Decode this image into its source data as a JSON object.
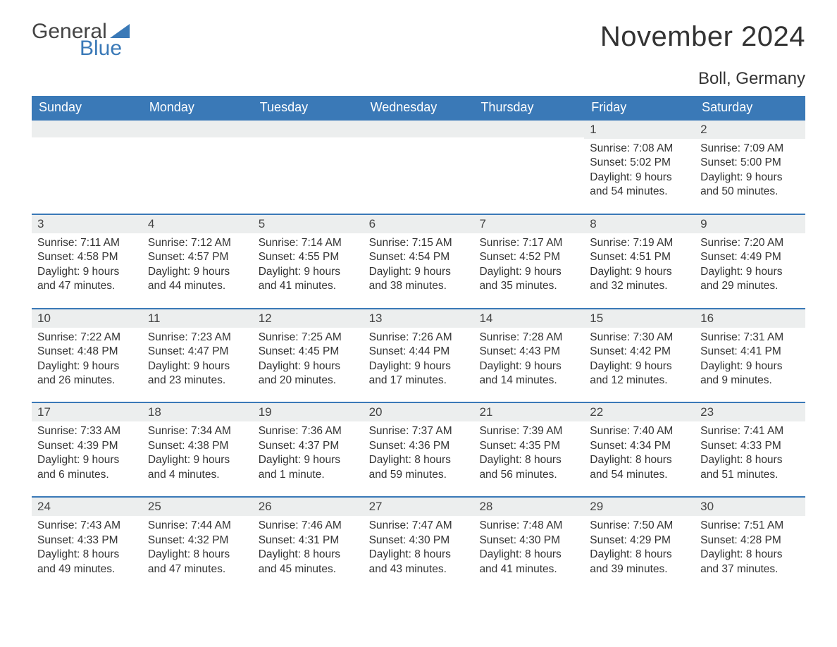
{
  "brand": {
    "general": "General",
    "blue": "Blue",
    "tri_color": "#3a79b7"
  },
  "title": "November 2024",
  "location": "Boll, Germany",
  "colors": {
    "header_bg": "#3a79b7",
    "header_text": "#ffffff",
    "daynum_bg": "#eceeee",
    "daynum_border": "#3a79b7",
    "text": "#333333",
    "page_bg": "#ffffff"
  },
  "dow": [
    "Sunday",
    "Monday",
    "Tuesday",
    "Wednesday",
    "Thursday",
    "Friday",
    "Saturday"
  ],
  "weeks": [
    [
      null,
      null,
      null,
      null,
      null,
      {
        "n": "1",
        "sunrise": "7:08 AM",
        "sunset": "5:02 PM",
        "daylight": "9 hours and 54 minutes."
      },
      {
        "n": "2",
        "sunrise": "7:09 AM",
        "sunset": "5:00 PM",
        "daylight": "9 hours and 50 minutes."
      }
    ],
    [
      {
        "n": "3",
        "sunrise": "7:11 AM",
        "sunset": "4:58 PM",
        "daylight": "9 hours and 47 minutes."
      },
      {
        "n": "4",
        "sunrise": "7:12 AM",
        "sunset": "4:57 PM",
        "daylight": "9 hours and 44 minutes."
      },
      {
        "n": "5",
        "sunrise": "7:14 AM",
        "sunset": "4:55 PM",
        "daylight": "9 hours and 41 minutes."
      },
      {
        "n": "6",
        "sunrise": "7:15 AM",
        "sunset": "4:54 PM",
        "daylight": "9 hours and 38 minutes."
      },
      {
        "n": "7",
        "sunrise": "7:17 AM",
        "sunset": "4:52 PM",
        "daylight": "9 hours and 35 minutes."
      },
      {
        "n": "8",
        "sunrise": "7:19 AM",
        "sunset": "4:51 PM",
        "daylight": "9 hours and 32 minutes."
      },
      {
        "n": "9",
        "sunrise": "7:20 AM",
        "sunset": "4:49 PM",
        "daylight": "9 hours and 29 minutes."
      }
    ],
    [
      {
        "n": "10",
        "sunrise": "7:22 AM",
        "sunset": "4:48 PM",
        "daylight": "9 hours and 26 minutes."
      },
      {
        "n": "11",
        "sunrise": "7:23 AM",
        "sunset": "4:47 PM",
        "daylight": "9 hours and 23 minutes."
      },
      {
        "n": "12",
        "sunrise": "7:25 AM",
        "sunset": "4:45 PM",
        "daylight": "9 hours and 20 minutes."
      },
      {
        "n": "13",
        "sunrise": "7:26 AM",
        "sunset": "4:44 PM",
        "daylight": "9 hours and 17 minutes."
      },
      {
        "n": "14",
        "sunrise": "7:28 AM",
        "sunset": "4:43 PM",
        "daylight": "9 hours and 14 minutes."
      },
      {
        "n": "15",
        "sunrise": "7:30 AM",
        "sunset": "4:42 PM",
        "daylight": "9 hours and 12 minutes."
      },
      {
        "n": "16",
        "sunrise": "7:31 AM",
        "sunset": "4:41 PM",
        "daylight": "9 hours and 9 minutes."
      }
    ],
    [
      {
        "n": "17",
        "sunrise": "7:33 AM",
        "sunset": "4:39 PM",
        "daylight": "9 hours and 6 minutes."
      },
      {
        "n": "18",
        "sunrise": "7:34 AM",
        "sunset": "4:38 PM",
        "daylight": "9 hours and 4 minutes."
      },
      {
        "n": "19",
        "sunrise": "7:36 AM",
        "sunset": "4:37 PM",
        "daylight": "9 hours and 1 minute."
      },
      {
        "n": "20",
        "sunrise": "7:37 AM",
        "sunset": "4:36 PM",
        "daylight": "8 hours and 59 minutes."
      },
      {
        "n": "21",
        "sunrise": "7:39 AM",
        "sunset": "4:35 PM",
        "daylight": "8 hours and 56 minutes."
      },
      {
        "n": "22",
        "sunrise": "7:40 AM",
        "sunset": "4:34 PM",
        "daylight": "8 hours and 54 minutes."
      },
      {
        "n": "23",
        "sunrise": "7:41 AM",
        "sunset": "4:33 PM",
        "daylight": "8 hours and 51 minutes."
      }
    ],
    [
      {
        "n": "24",
        "sunrise": "7:43 AM",
        "sunset": "4:33 PM",
        "daylight": "8 hours and 49 minutes."
      },
      {
        "n": "25",
        "sunrise": "7:44 AM",
        "sunset": "4:32 PM",
        "daylight": "8 hours and 47 minutes."
      },
      {
        "n": "26",
        "sunrise": "7:46 AM",
        "sunset": "4:31 PM",
        "daylight": "8 hours and 45 minutes."
      },
      {
        "n": "27",
        "sunrise": "7:47 AM",
        "sunset": "4:30 PM",
        "daylight": "8 hours and 43 minutes."
      },
      {
        "n": "28",
        "sunrise": "7:48 AM",
        "sunset": "4:30 PM",
        "daylight": "8 hours and 41 minutes."
      },
      {
        "n": "29",
        "sunrise": "7:50 AM",
        "sunset": "4:29 PM",
        "daylight": "8 hours and 39 minutes."
      },
      {
        "n": "30",
        "sunrise": "7:51 AM",
        "sunset": "4:28 PM",
        "daylight": "8 hours and 37 minutes."
      }
    ]
  ],
  "labels": {
    "sunrise": "Sunrise: ",
    "sunset": "Sunset: ",
    "daylight": "Daylight: "
  }
}
